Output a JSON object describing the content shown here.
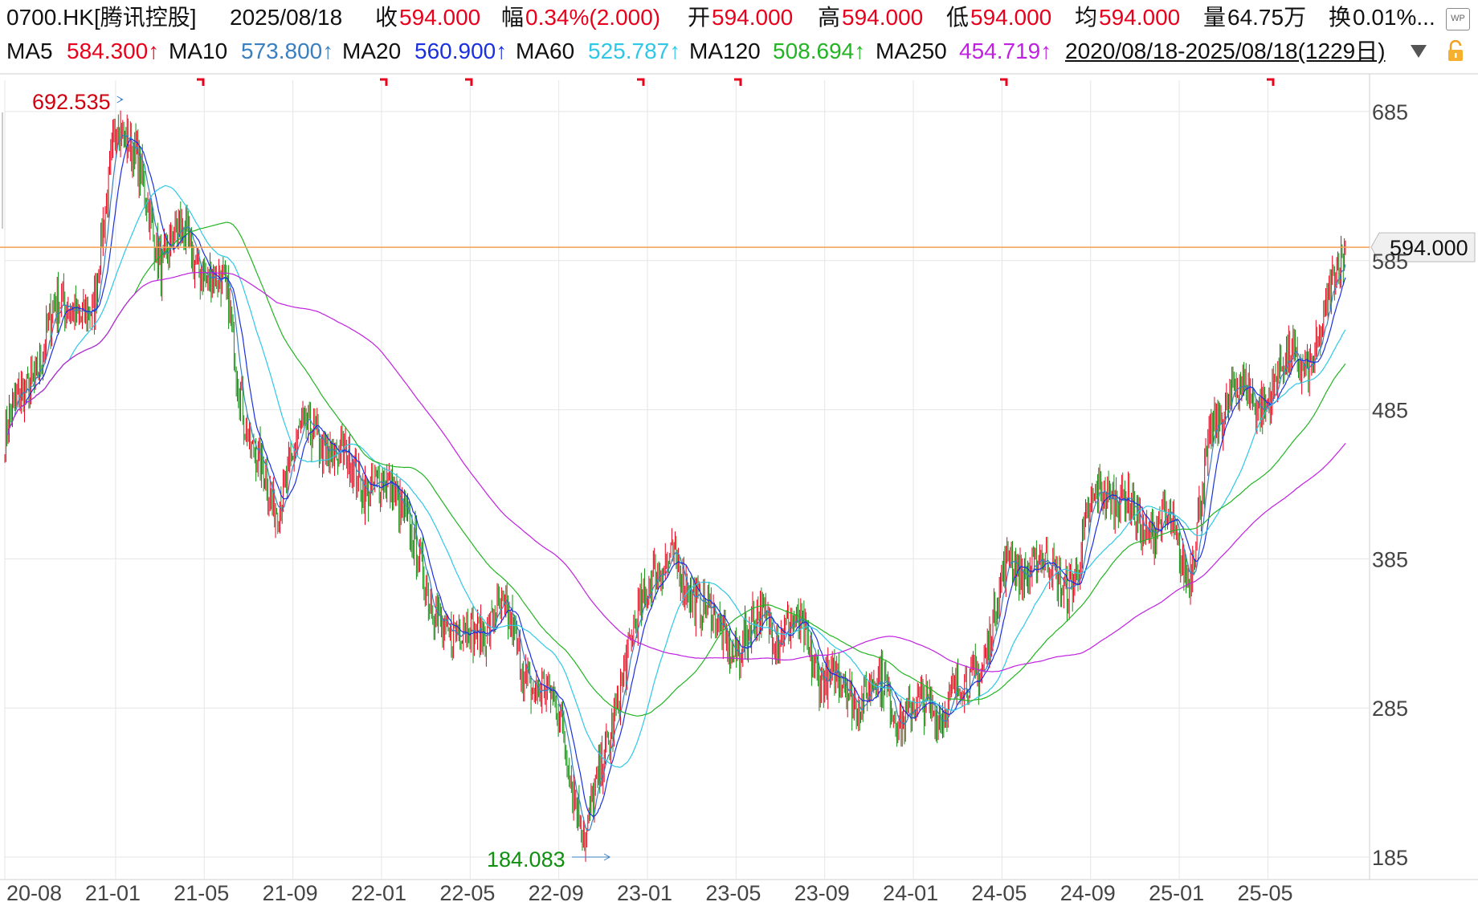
{
  "header": {
    "symbol": "0700.HK[腾讯控股]",
    "date": "2025/08/18",
    "close_label": "收",
    "close_value": "594.000",
    "change_label": "幅",
    "change_value": "0.34%(2.000)",
    "open_label": "开",
    "open_value": "594.000",
    "high_label": "高",
    "high_value": "594.000",
    "low_label": "低",
    "low_value": "594.000",
    "avg_label": "均",
    "avg_value": "594.000",
    "volume_label": "量",
    "volume_value": "64.75万",
    "turnover_label": "换",
    "turnover_value": "0.01%..."
  },
  "ma_row": {
    "items": [
      {
        "label": "MA5",
        "value": "584.300↑",
        "color": "#e8001c"
      },
      {
        "label": "MA10",
        "value": "573.800↑",
        "color": "#3a7fc0"
      },
      {
        "label": "MA20",
        "value": "560.900↑",
        "color": "#1a30e0"
      },
      {
        "label": "MA60",
        "value": "525.787↑",
        "color": "#2ec8e6"
      },
      {
        "label": "MA120",
        "value": "508.694↑",
        "color": "#22b422"
      },
      {
        "label": "MA250",
        "value": "454.719↑",
        "color": "#c020e0"
      }
    ],
    "range": "2020/08/18-2025/08/18(1229日)",
    "range_dropdown_icon": "triangle-down-icon",
    "lock_icon": "unlock-icon",
    "wp_icon": "wp-icon",
    "wp_label": "WP"
  },
  "chart_data": {
    "type": "candlestick",
    "current_price": 594.0,
    "current_price_label": "594.000",
    "high_marker": {
      "label": "692.535",
      "x": "21-01",
      "value": 692.535
    },
    "low_marker": {
      "label": "184.083",
      "x": "22-10",
      "value": 184.083
    },
    "ylim": [
      180,
      700
    ],
    "y_ticks": [
      185,
      285,
      385,
      485,
      585,
      685
    ],
    "y_tick_labels": [
      "185",
      "285",
      "385",
      "485",
      "585",
      "685"
    ],
    "x_tick_labels": [
      "20-08",
      "21-01",
      "21-05",
      "21-09",
      "22-01",
      "22-05",
      "22-09",
      "23-01",
      "23-05",
      "23-09",
      "24-01",
      "24-05",
      "24-09",
      "25-01",
      "25-05"
    ],
    "event_marks": 7,
    "price_path": [
      [
        "2020-08",
        468
      ],
      [
        "2020-09",
        500
      ],
      [
        "2020-10",
        540
      ],
      [
        "2020-11",
        560
      ],
      [
        "2020-12",
        545
      ],
      [
        "2021-01",
        690
      ],
      [
        "2021-02",
        640
      ],
      [
        "2021-03",
        590
      ],
      [
        "2021-04",
        600
      ],
      [
        "2021-05",
        580
      ],
      [
        "2021-06",
        555
      ],
      [
        "2021-07",
        460
      ],
      [
        "2021-08",
        420
      ],
      [
        "2021-09",
        460
      ],
      [
        "2021-10",
        470
      ],
      [
        "2021-11",
        450
      ],
      [
        "2021-12",
        440
      ],
      [
        "2022-01",
        430
      ],
      [
        "2022-02",
        420
      ],
      [
        "2022-03",
        350
      ],
      [
        "2022-04",
        340
      ],
      [
        "2022-05",
        330
      ],
      [
        "2022-06",
        355
      ],
      [
        "2022-07",
        320
      ],
      [
        "2022-08",
        295
      ],
      [
        "2022-09",
        275
      ],
      [
        "2022-10",
        190
      ],
      [
        "2022-11",
        270
      ],
      [
        "2022-12",
        320
      ],
      [
        "2023-01",
        385
      ],
      [
        "2023-02",
        375
      ],
      [
        "2023-03",
        365
      ],
      [
        "2023-04",
        330
      ],
      [
        "2023-05",
        330
      ],
      [
        "2023-06",
        345
      ],
      [
        "2023-07",
        340
      ],
      [
        "2023-08",
        325
      ],
      [
        "2023-09",
        300
      ],
      [
        "2023-10",
        295
      ],
      [
        "2023-11",
        300
      ],
      [
        "2023-12",
        285
      ],
      [
        "2024-01",
        280
      ],
      [
        "2024-02",
        290
      ],
      [
        "2024-03",
        295
      ],
      [
        "2024-04",
        330
      ],
      [
        "2024-05",
        385
      ],
      [
        "2024-06",
        380
      ],
      [
        "2024-07",
        375
      ],
      [
        "2024-08",
        370
      ],
      [
        "2024-09",
        440
      ],
      [
        "2024-10",
        420
      ],
      [
        "2024-11",
        410
      ],
      [
        "2024-12",
        405
      ],
      [
        "2025-01",
        380
      ],
      [
        "2025-02",
        460
      ],
      [
        "2025-03",
        510
      ],
      [
        "2025-04",
        480
      ],
      [
        "2025-05",
        515
      ],
      [
        "2025-06",
        510
      ],
      [
        "2025-07",
        540
      ],
      [
        "2025-08",
        594
      ]
    ],
    "series": [
      {
        "name": "MA5",
        "color": "#e8001c"
      },
      {
        "name": "MA10",
        "color": "#3a7fc0"
      },
      {
        "name": "MA20",
        "color": "#1a30e0"
      },
      {
        "name": "MA60",
        "color": "#2ec8e6"
      },
      {
        "name": "MA120",
        "color": "#22b422"
      },
      {
        "name": "MA250",
        "color": "#c020e0"
      }
    ],
    "colors": {
      "up": "#e8001c",
      "down": "#109010",
      "price_line": "#f5a050",
      "grid": "#e6e6e6"
    }
  }
}
